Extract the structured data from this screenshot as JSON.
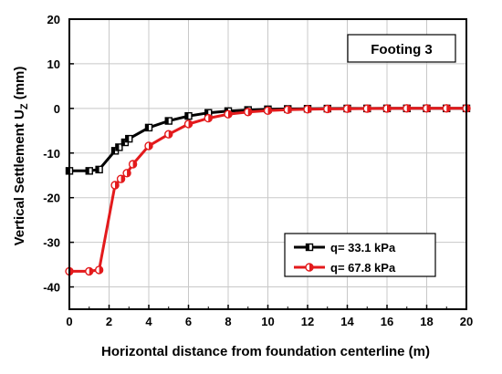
{
  "chart_data": {
    "type": "line",
    "title": "",
    "annotation": "Footing 3",
    "xlabel": "Horizontal distance from foundation centerline (m)",
    "ylabel_main": "Vertical Settlement U",
    "ylabel_sub": "Z",
    "ylabel_unit": " (mm)",
    "xlim": [
      0,
      20
    ],
    "ylim": [
      -45,
      20
    ],
    "xticks": [
      0,
      2,
      4,
      6,
      8,
      10,
      12,
      14,
      16,
      18,
      20
    ],
    "yticks": [
      20,
      10,
      0,
      -10,
      -20,
      -30,
      -40
    ],
    "grid": true,
    "legend_position": "bottom-right",
    "series": [
      {
        "name": "q= 33.1 kPa",
        "color": "#000000",
        "marker": "square-half",
        "x": [
          0,
          1,
          1.5,
          2.3,
          2.5,
          2.8,
          3,
          4,
          5,
          6,
          7,
          8,
          9,
          10,
          11,
          12,
          13,
          14,
          15,
          16,
          17,
          18,
          19,
          20
        ],
        "y": [
          -14,
          -14,
          -13.7,
          -9.5,
          -8.7,
          -7.6,
          -6.8,
          -4.3,
          -2.8,
          -1.7,
          -1,
          -0.6,
          -0.35,
          -0.2,
          -0.12,
          -0.07,
          -0.04,
          -0.02,
          -0.01,
          0,
          0,
          0,
          0,
          0
        ]
      },
      {
        "name": "q= 67.8 kPa",
        "color": "#e31a1c",
        "marker": "circle-half",
        "x": [
          0,
          1,
          1.5,
          2.3,
          2.6,
          2.9,
          3.2,
          4,
          5,
          6,
          7,
          8,
          9,
          10,
          11,
          12,
          13,
          14,
          15,
          16,
          17,
          18,
          19,
          20
        ],
        "y": [
          -36.5,
          -36.5,
          -36.2,
          -17.2,
          -15.8,
          -14.5,
          -12.5,
          -8.4,
          -5.8,
          -3.5,
          -2.2,
          -1.3,
          -0.8,
          -0.5,
          -0.3,
          -0.2,
          -0.12,
          -0.07,
          -0.04,
          -0.02,
          0,
          0,
          0,
          0
        ]
      }
    ]
  }
}
